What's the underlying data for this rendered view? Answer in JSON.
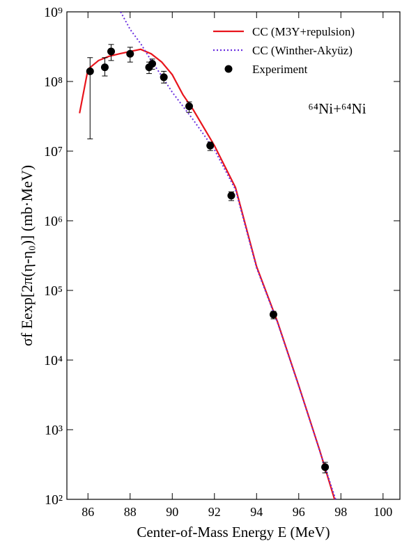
{
  "chart_data": {
    "type": "line",
    "x_label": "Center-of-Mass Energy E (MeV)",
    "y_label": "σf Eexp[2π(η-η₀)] (mb·MeV)",
    "annotation": "⁶⁴Ni+⁶⁴Ni",
    "log_y": true,
    "legend": "top-right",
    "xlim": [
      85,
      100.8
    ],
    "ylim": [
      100,
      1000000000
    ],
    "xticks": [
      86,
      88,
      90,
      92,
      94,
      96,
      98,
      100
    ],
    "yticks": [
      {
        "value": 100,
        "label": "10²"
      },
      {
        "value": 1000,
        "label": "10³"
      },
      {
        "value": 10000,
        "label": "10⁴"
      },
      {
        "value": 100000,
        "label": "10⁵"
      },
      {
        "value": 1000000,
        "label": "10⁶"
      },
      {
        "value": 10000000,
        "label": "10⁷"
      },
      {
        "value": 100000000,
        "label": "10⁸"
      },
      {
        "value": 1000000000,
        "label": "10⁹"
      }
    ],
    "series": [
      {
        "name": "CC (M3Y+repulsion)",
        "type": "line",
        "dash": "solid",
        "color": "#e8141c",
        "x": [
          85.6,
          86.0,
          86.5,
          87.0,
          87.5,
          88.0,
          88.5,
          89.0,
          89.5,
          90.0,
          90.5,
          91.0,
          92.0,
          93.0,
          94.0,
          95.0,
          96.0,
          97.0,
          97.7
        ],
        "values": [
          35000000,
          150000000,
          200000000,
          230000000,
          250000000,
          270000000,
          290000000,
          250000000,
          190000000,
          125000000,
          65000000,
          39000000,
          12000000,
          3000000,
          220000,
          35000,
          4300,
          500,
          100
        ]
      },
      {
        "name": "CC (Winther-Akyüz)",
        "type": "line",
        "dash": "dotted",
        "color": "#6a2fe0",
        "x": [
          87.55,
          88.0,
          88.5,
          89.0,
          89.5,
          90.0,
          91.0,
          92.0,
          93.0,
          94.0,
          95.0,
          96.0,
          97.0,
          97.75
        ],
        "values": [
          1000000000,
          560000000,
          350000000,
          200000000,
          120000000,
          70000000,
          28000000,
          10500000,
          2800000,
          210000,
          34000,
          4200,
          490,
          100
        ]
      },
      {
        "name": "Experiment",
        "type": "scatter",
        "color": "#000000",
        "x": [
          86.1,
          86.8,
          87.1,
          88.0,
          88.9,
          89.05,
          89.6,
          90.8,
          91.8,
          92.8,
          94.8,
          97.25
        ],
        "values": [
          140000000,
          160000000,
          270000000,
          250000000,
          160000000,
          180000000,
          115000000,
          44000000,
          12000000,
          2300000,
          45000,
          290
        ],
        "err_plus": [
          80000000,
          60000000,
          70000000,
          60000000,
          30000000,
          30000000,
          25000000,
          7000000,
          1500000,
          300000,
          5000,
          50
        ],
        "err_minus": [
          125000000,
          40000000,
          70000000,
          60000000,
          30000000,
          30000000,
          20000000,
          8000000,
          1800000,
          350000,
          6000,
          50
        ]
      }
    ]
  }
}
